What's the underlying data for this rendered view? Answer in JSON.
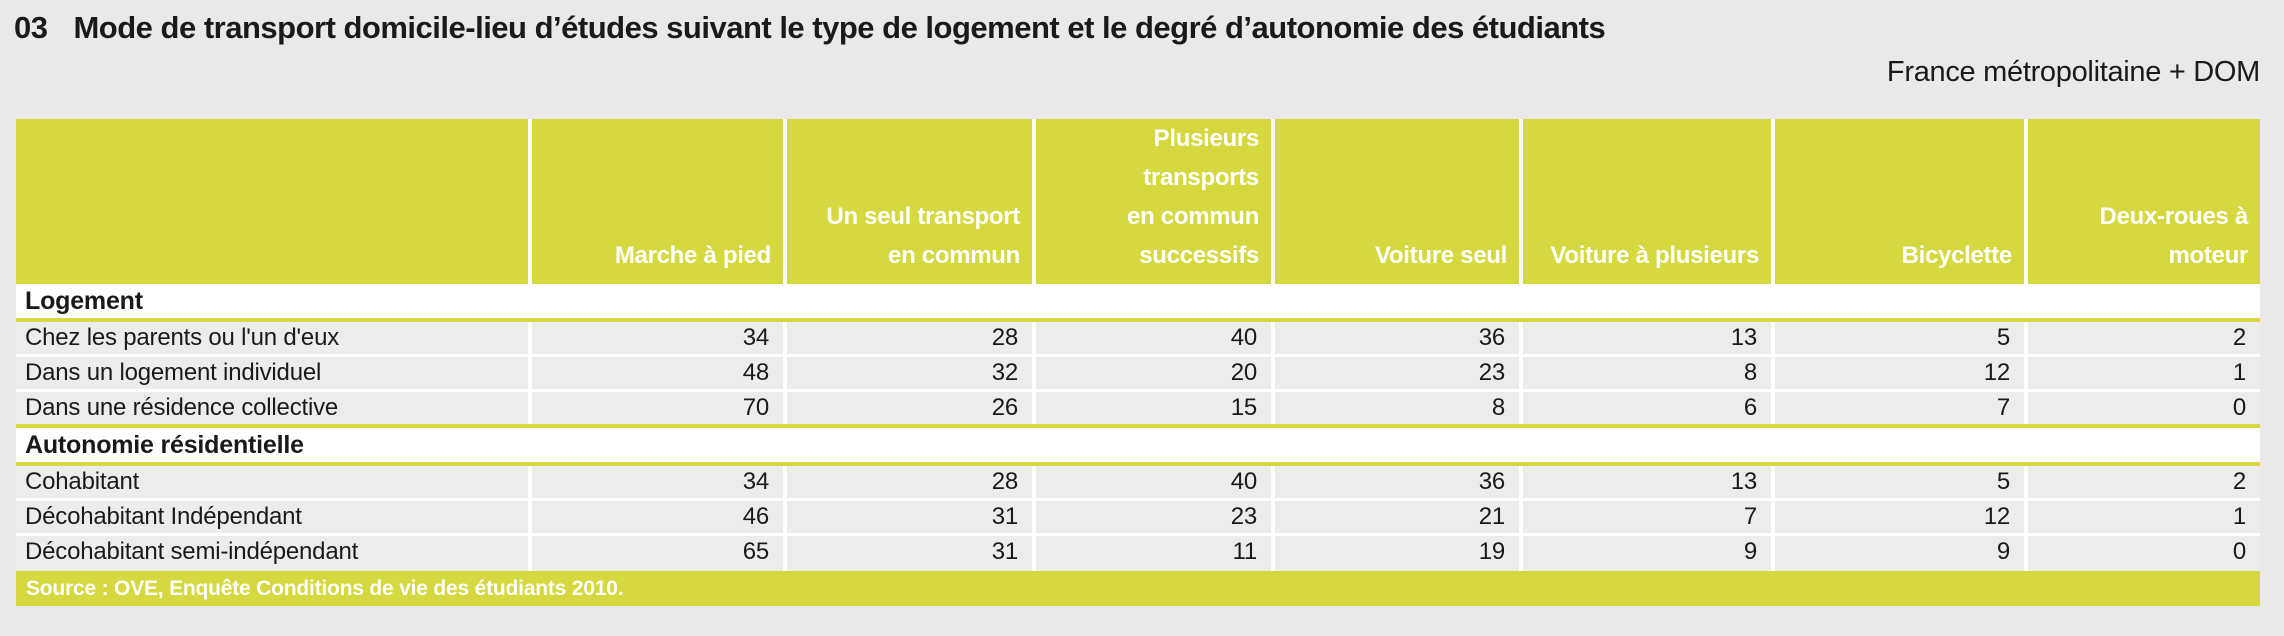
{
  "page": {
    "title_number": "03",
    "title": "Mode de transport domicile-lieu d’études suivant le type de logement et le degré d’autonomie des étudiants",
    "region_note": "France métropolitaine + DOM"
  },
  "colors": {
    "accent_green": "#d5d93f",
    "row_gray": "#ececec",
    "page_background": "#e9e9e9",
    "header_text": "#ffffff"
  },
  "table": {
    "columns": [
      "",
      "Marche à pied",
      "Un seul transport\nen commun",
      "Plusieurs\ntransports\nen commun\nsuccessifs",
      "Voiture seul",
      "Voiture à plusieurs",
      "Bicyclette",
      "Deux-roues à\nmoteur"
    ],
    "sections": [
      {
        "label": "Logement",
        "rows": [
          {
            "label": "Chez les parents ou l'un d'eux",
            "values": [
              34,
              28,
              40,
              36,
              13,
              5,
              2
            ]
          },
          {
            "label": "Dans un logement individuel",
            "values": [
              48,
              32,
              20,
              23,
              8,
              12,
              1
            ]
          },
          {
            "label": "Dans une résidence collective",
            "values": [
              70,
              26,
              15,
              8,
              6,
              7,
              0
            ]
          }
        ]
      },
      {
        "label": "Autonomie résidentielle",
        "rows": [
          {
            "label": "Cohabitant",
            "values": [
              34,
              28,
              40,
              36,
              13,
              5,
              2
            ]
          },
          {
            "label": "Décohabitant Indépendant",
            "values": [
              46,
              31,
              23,
              21,
              7,
              12,
              1
            ]
          },
          {
            "label": "Décohabitant semi-indépendant",
            "values": [
              65,
              31,
              11,
              19,
              9,
              9,
              0
            ]
          }
        ]
      }
    ],
    "source": "Source : OVE, Enquête Conditions de vie des étudiants 2010."
  }
}
